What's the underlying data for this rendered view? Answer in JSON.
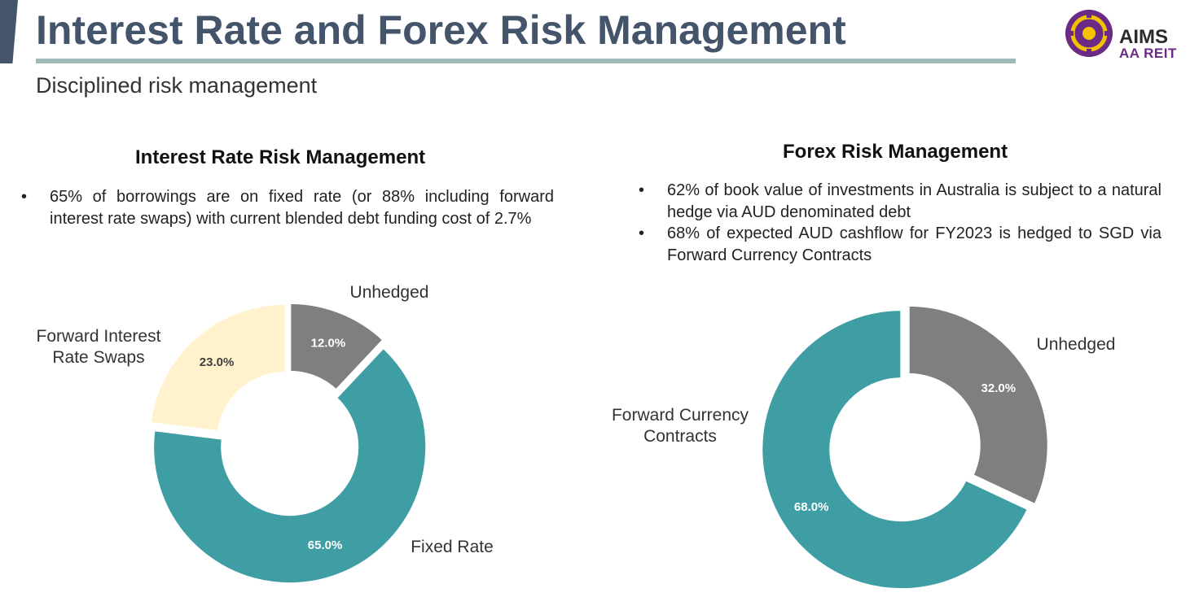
{
  "header": {
    "title": "Interest Rate and Forex Risk Management",
    "subtitle": "Disciplined risk management",
    "logo": {
      "line1": "AIMS",
      "line2": "AA REIT",
      "brand_color": "#6a2a86",
      "icon_color": "#f2c200"
    }
  },
  "interest_section": {
    "heading": "Interest Rate Risk Management",
    "bullets": [
      "65% of borrowings are on fixed rate (or 88% including forward interest rate swaps) with current blended debt funding cost of 2.7%"
    ],
    "labels": {
      "unhedged": "Unhedged",
      "swaps": "Forward Interest Rate Swaps",
      "fixed": "Fixed Rate"
    }
  },
  "forex_section": {
    "heading": "Forex Risk Management",
    "bullets": [
      "62% of book value of investments in Australia is subject to a natural hedge via AUD denominated debt",
      "68% of expected AUD cashflow for FY2023 is hedged to SGD via Forward Currency Contracts"
    ],
    "labels": {
      "unhedged": "Unhedged",
      "fcc": "Forward Currency Contracts"
    }
  },
  "chart_data": [
    {
      "type": "pie",
      "donut": true,
      "title": "Interest Rate Risk Management",
      "categories": [
        "Unhedged",
        "Fixed Rate",
        "Forward Interest Rate Swaps"
      ],
      "values": [
        12.0,
        65.0,
        23.0
      ],
      "value_labels": [
        "12.0%",
        "65.0%",
        "23.0%"
      ],
      "colors": [
        "#7f7f7f",
        "#3f9ea4",
        "#fff2cc"
      ],
      "exploded": true
    },
    {
      "type": "pie",
      "donut": true,
      "title": "Forex Risk Management",
      "categories": [
        "Unhedged",
        "Forward Currency Contracts"
      ],
      "values": [
        32.0,
        68.0
      ],
      "value_labels": [
        "32.0%",
        "68.0%"
      ],
      "colors": [
        "#7f7f7f",
        "#3f9ea4"
      ],
      "exploded": true
    }
  ]
}
